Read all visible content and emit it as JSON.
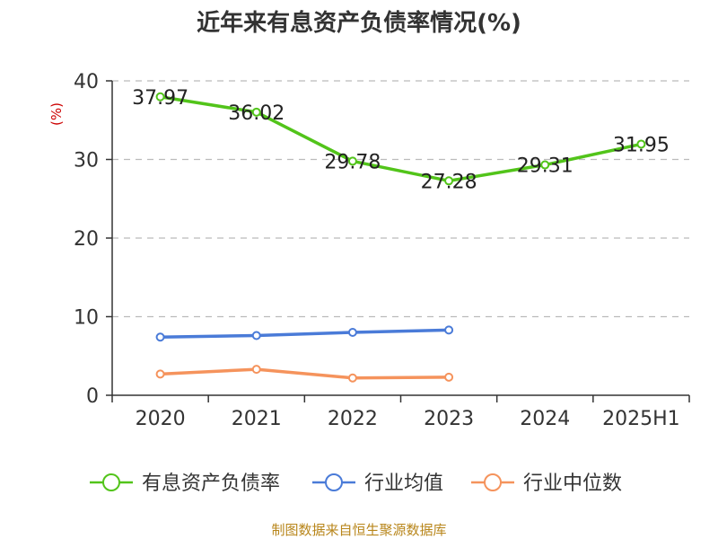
{
  "chart_data": {
    "type": "line",
    "title": "近年来有息资产负债率情况(%)",
    "ylabel": "(%)",
    "categories": [
      "2020",
      "2021",
      "2022",
      "2023",
      "2024",
      "2025H1"
    ],
    "ylim": [
      0,
      40
    ],
    "yticks": [
      0,
      10,
      20,
      30,
      40
    ],
    "grid": true,
    "legend_position": "bottom",
    "series": [
      {
        "name": "有息资产负债率",
        "color": "#52c41a",
        "values": [
          37.97,
          36.02,
          29.78,
          27.28,
          29.31,
          31.95
        ],
        "labels": [
          "37.97",
          "36.02",
          "29.78",
          "27.28",
          "29.31",
          "31.95"
        ]
      },
      {
        "name": "行业均值",
        "color": "#4a7bd8",
        "values": [
          7.4,
          7.6,
          8.0,
          8.3,
          null,
          null
        ]
      },
      {
        "name": "行业中位数",
        "color": "#f5935c",
        "values": [
          2.7,
          3.3,
          2.2,
          2.3,
          null,
          null
        ]
      }
    ]
  },
  "source": "制图数据来自恒生聚源数据库"
}
